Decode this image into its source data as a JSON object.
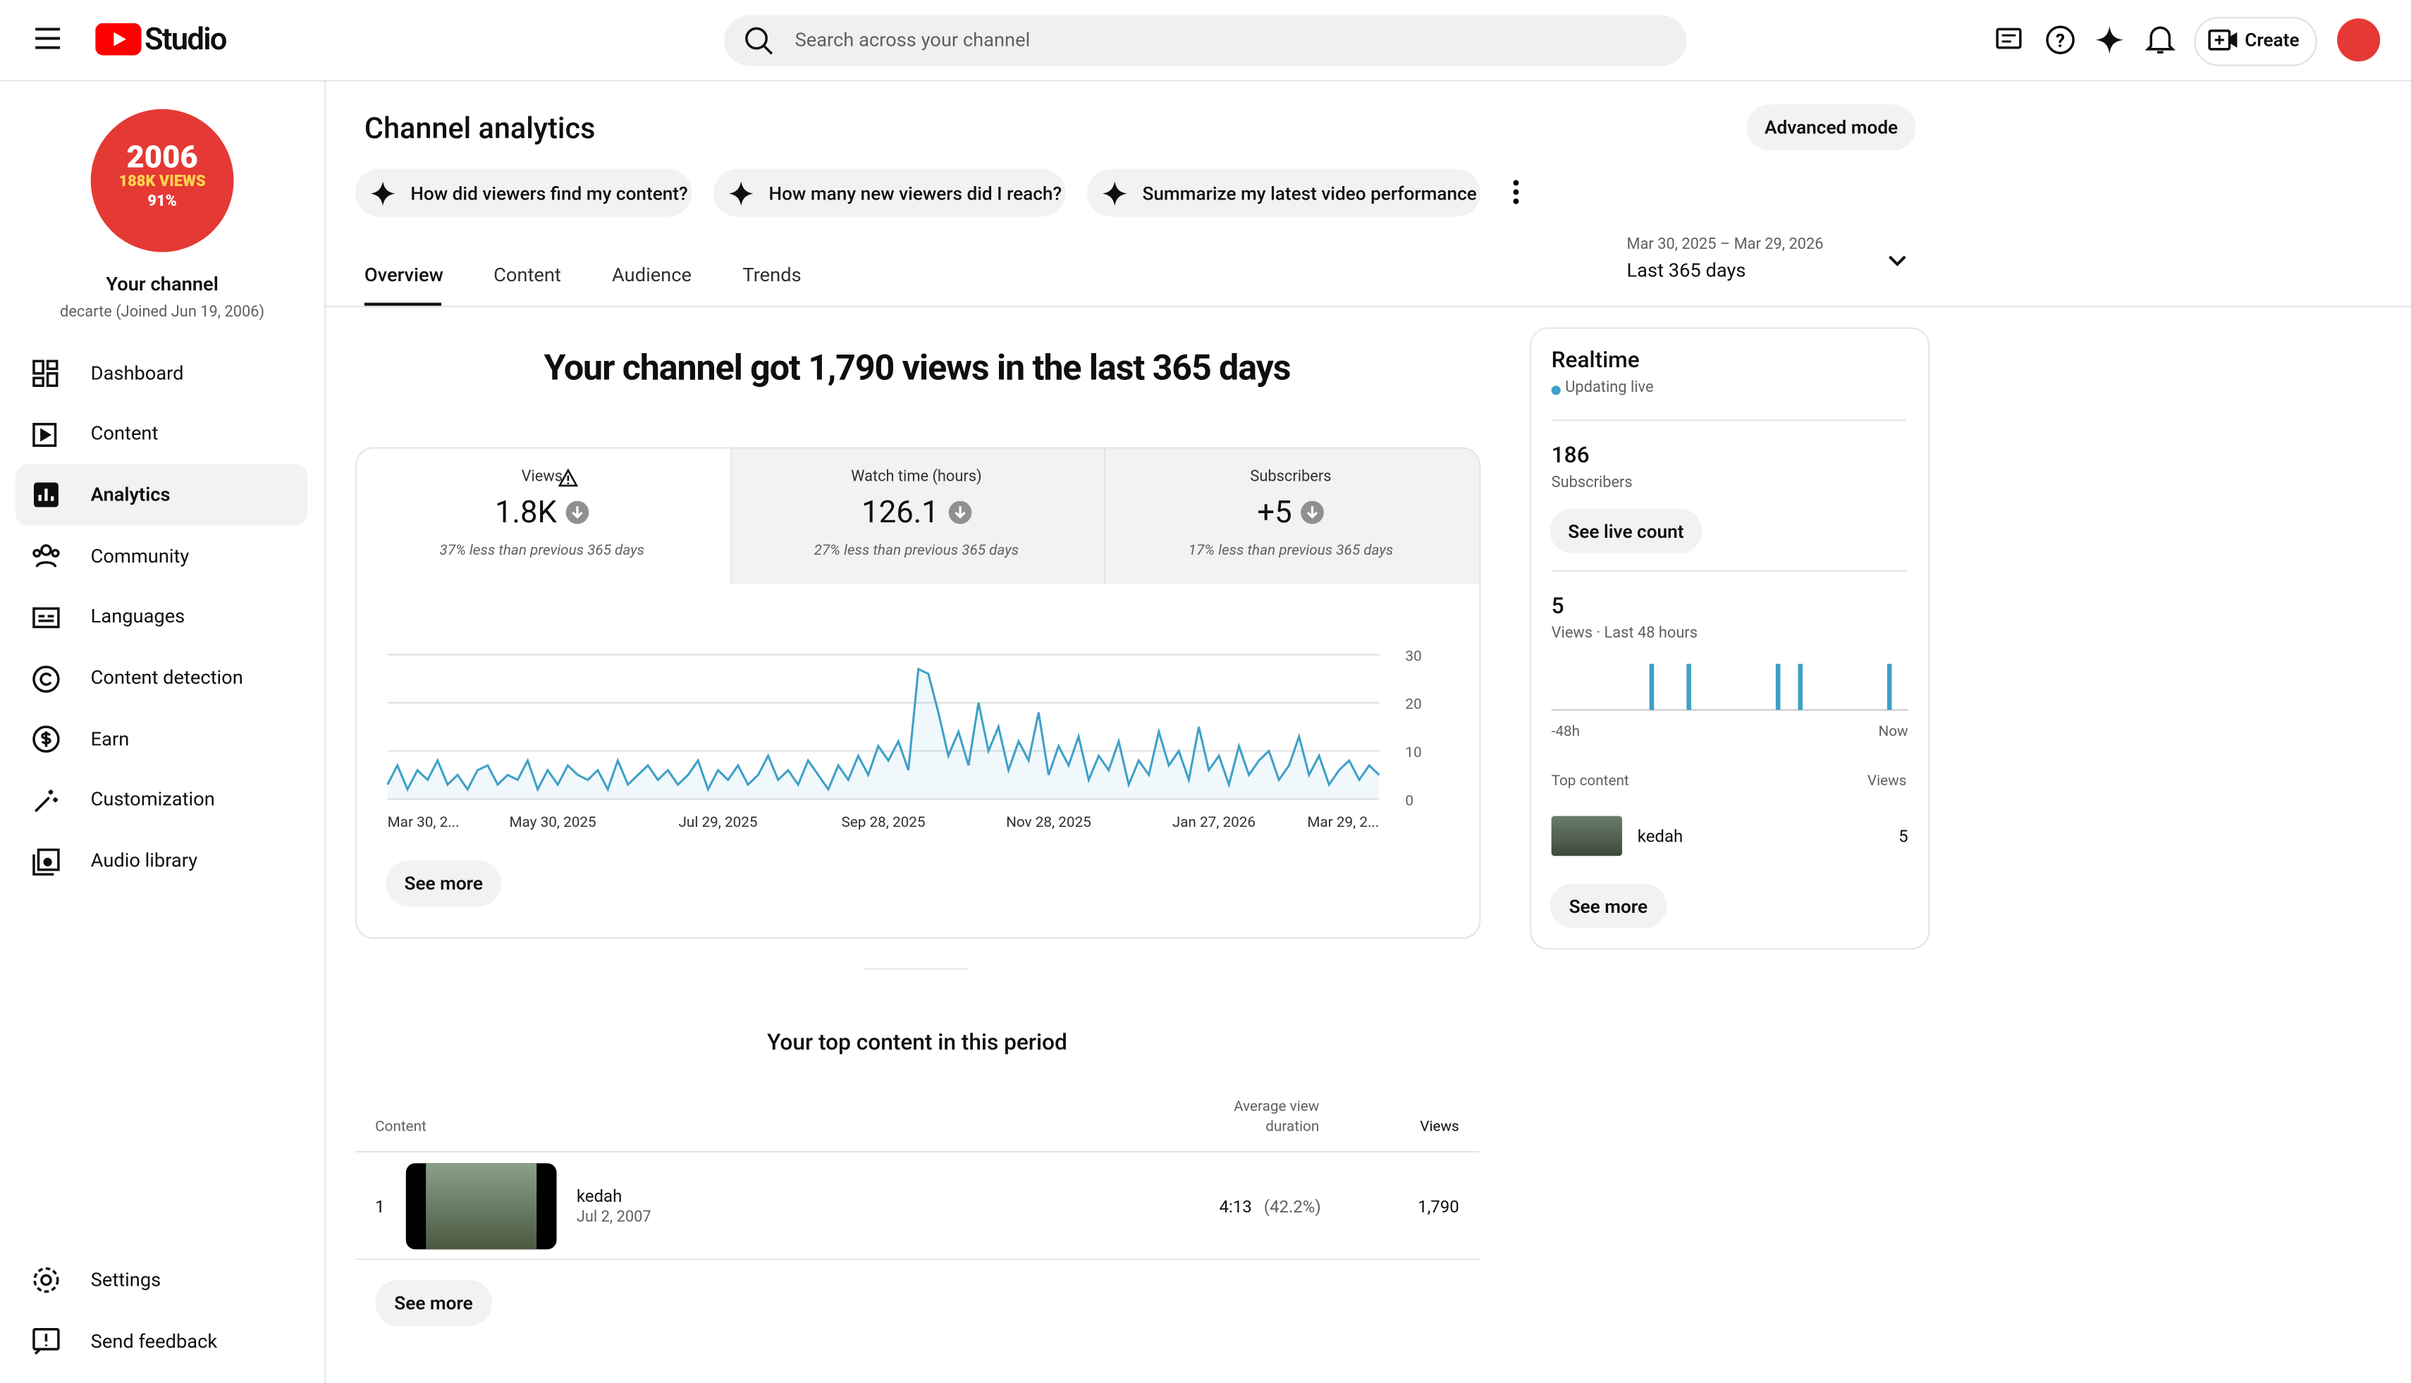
{
  "header": {
    "logo": "Studio",
    "search_placeholder": "Search across your channel",
    "create": "Create"
  },
  "sidebar": {
    "avatar": {
      "line1": "2006",
      "line2": "188K VIEWS",
      "line3": "91%"
    },
    "channel_title": "Your channel",
    "channel_subtitle": "decarte (Joined Jun 19, 2006)",
    "nav": [
      "Dashboard",
      "Content",
      "Analytics",
      "Community",
      "Languages",
      "Content detection",
      "Earn",
      "Customization",
      "Audio library"
    ],
    "footer_nav": [
      "Settings",
      "Send feedback"
    ]
  },
  "page": {
    "title": "Channel analytics",
    "advanced": "Advanced mode",
    "prompts": [
      "How did viewers find my content?",
      "How many new viewers did I reach?",
      "Summarize my latest video performance"
    ],
    "tabs": [
      "Overview",
      "Content",
      "Audience",
      "Trends"
    ],
    "date_range": "Mar 30, 2025 – Mar 29, 2026",
    "period": "Last 365 days"
  },
  "overview": {
    "headline": "Your channel got 1,790 views in the last 365 days",
    "metrics": [
      {
        "label": "Views",
        "value": "1.8K",
        "note": "37% less than previous 365 days"
      },
      {
        "label": "Watch time (hours)",
        "value": "126.1",
        "note": "27% less than previous 365 days"
      },
      {
        "label": "Subscribers",
        "value": "+5",
        "note": "17% less than previous 365 days"
      }
    ],
    "see_more": "See more"
  },
  "chart_data": [
    {
      "type": "line",
      "color": "#3ea0c8",
      "ylim": [
        0,
        30
      ],
      "yticks": [
        0,
        10,
        20,
        30
      ],
      "grid": true,
      "x_labels": [
        "Mar 30, 2...",
        "May 30, 2025",
        "Jul 29, 2025",
        "Sep 28, 2025",
        "Nov 28, 2025",
        "Jan 27, 2026",
        "Mar 29, 2..."
      ],
      "values": [
        3,
        7,
        2,
        6,
        4,
        8,
        3,
        5,
        2,
        6,
        7,
        3,
        5,
        4,
        8,
        2,
        6,
        3,
        7,
        5,
        4,
        6,
        2,
        8,
        3,
        5,
        7,
        4,
        6,
        3,
        5,
        8,
        2,
        6,
        4,
        7,
        3,
        5,
        9,
        4,
        6,
        3,
        8,
        5,
        2,
        7,
        4,
        9,
        5,
        11,
        8,
        12,
        6,
        27,
        26,
        18,
        9,
        14,
        7,
        20,
        10,
        15,
        6,
        12,
        8,
        18,
        5,
        11,
        7,
        13,
        4,
        9,
        6,
        12,
        3,
        8,
        5,
        14,
        7,
        10,
        4,
        15,
        6,
        9,
        3,
        11,
        5,
        8,
        10,
        4,
        7,
        13,
        5,
        9,
        3,
        6,
        8,
        4,
        7,
        5
      ]
    },
    {
      "type": "bar",
      "color": "#3ea0c8",
      "x_labels": [
        "-48h",
        "Now"
      ],
      "values": [
        0,
        0,
        0,
        0,
        0,
        0,
        0,
        0,
        0,
        0,
        0,
        0,
        0,
        1,
        0,
        0,
        0,
        0,
        1,
        0,
        0,
        0,
        0,
        0,
        0,
        0,
        0,
        0,
        0,
        0,
        1,
        0,
        0,
        1,
        0,
        0,
        0,
        0,
        0,
        0,
        0,
        0,
        0,
        0,
        0,
        1,
        0,
        0
      ]
    }
  ],
  "realtime": {
    "title": "Realtime",
    "status": "Updating live",
    "subscribers": 186,
    "subscribers_label": "Subscribers",
    "see_live": "See live count",
    "views": 5,
    "views_label": "Views · Last 48 hours",
    "top_content_label": "Top content",
    "views_col": "Views",
    "top_item": {
      "title": "kedah",
      "views": 5
    },
    "see_more": "See more"
  },
  "top_content": {
    "title": "Your top content in this period",
    "columns": [
      "Content",
      "Average view duration",
      "Views"
    ],
    "rows": [
      {
        "rank": 1,
        "title": "kedah",
        "date": "Jul 2, 2007",
        "avg_duration": "4:13",
        "avg_pct": "(42.2%)",
        "views": "1,790"
      }
    ],
    "see_more": "See more"
  }
}
